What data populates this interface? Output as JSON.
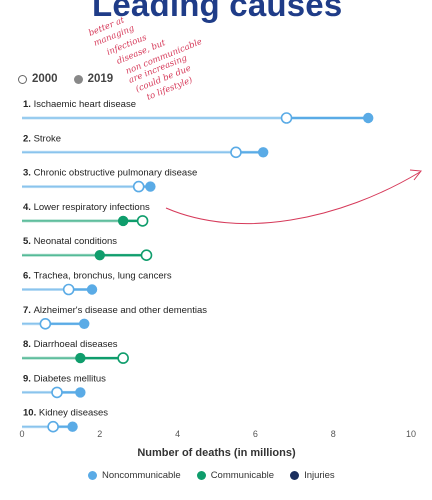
{
  "page_title": "Leading causes",
  "handwritten_note": [
    "better at",
    "managing",
    "infectious",
    "disease, but",
    "non communicable",
    "are increasing",
    "(could be due",
    "to lifestyle)"
  ],
  "legend_top": [
    {
      "label": "2000",
      "style": "hollow"
    },
    {
      "label": "2019",
      "style": "filled"
    }
  ],
  "legend_bottom": [
    {
      "label": "Noncommunicable",
      "color": "#5aabe6"
    },
    {
      "label": "Communicable",
      "color": "#0f9d6c"
    },
    {
      "label": "Injuries",
      "color": "#1b2f5e"
    }
  ],
  "colors": {
    "noncommunicable": "#5aabe6",
    "communicable": "#0f9d6c",
    "injuries": "#1b2f5e",
    "annotation": "#d63a5a",
    "title": "#1f3c88"
  },
  "chart_data": {
    "type": "dumbbell",
    "xlabel": "Number of deaths (in millions)",
    "xlim": [
      0,
      10
    ],
    "xticks": [
      "0",
      "2",
      "4",
      "6",
      "8",
      "10"
    ],
    "series": [
      {
        "name": "2000"
      },
      {
        "name": "2019"
      }
    ],
    "rows": [
      {
        "rank": "1.",
        "label": "Ischaemic heart disease",
        "category": "noncommunicable",
        "v2000": 6.8,
        "v2019": 8.9
      },
      {
        "rank": "2.",
        "label": "Stroke",
        "category": "noncommunicable",
        "v2000": 5.5,
        "v2019": 6.2
      },
      {
        "rank": "3.",
        "label": "Chronic obstructive pulmonary disease",
        "category": "noncommunicable",
        "v2000": 3.0,
        "v2019": 3.3
      },
      {
        "rank": "4.",
        "label": "Lower respiratory infections",
        "category": "communicable",
        "v2000": 3.1,
        "v2019": 2.6
      },
      {
        "rank": "5.",
        "label": "Neonatal conditions",
        "category": "communicable",
        "v2000": 3.2,
        "v2019": 2.0
      },
      {
        "rank": "6.",
        "label": "Trachea, bronchus, lung cancers",
        "category": "noncommunicable",
        "v2000": 1.2,
        "v2019": 1.8
      },
      {
        "rank": "7.",
        "label": "Alzheimer's disease and other dementias",
        "category": "noncommunicable",
        "v2000": 0.6,
        "v2019": 1.6
      },
      {
        "rank": "8.",
        "label": "Diarrhoeal diseases",
        "category": "communicable",
        "v2000": 2.6,
        "v2019": 1.5
      },
      {
        "rank": "9.",
        "label": "Diabetes mellitus",
        "category": "noncommunicable",
        "v2000": 0.9,
        "v2019": 1.5
      },
      {
        "rank": "10.",
        "label": "Kidney diseases",
        "category": "noncommunicable",
        "v2000": 0.8,
        "v2019": 1.3
      }
    ]
  }
}
